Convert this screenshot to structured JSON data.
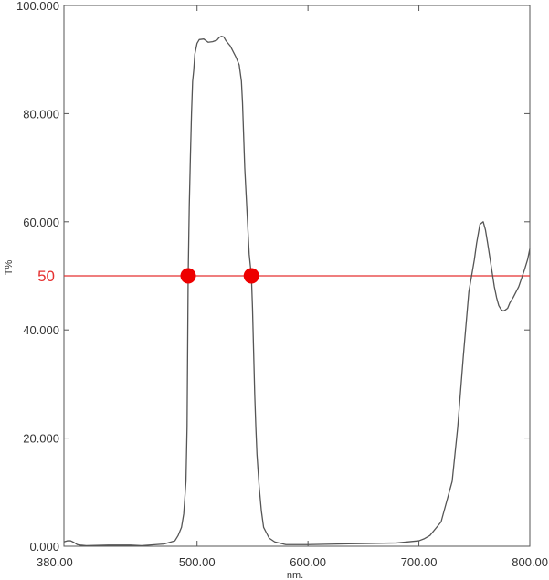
{
  "chart_data": {
    "type": "line",
    "xlabel": "nm.",
    "ylabel": "T%",
    "xlim": [
      380,
      800
    ],
    "ylim": [
      0,
      100
    ],
    "xticks": [
      "380.00",
      "500.00",
      "600.00",
      "700.00",
      "800.00"
    ],
    "yticks": [
      "0.000",
      "20.000",
      "40.000",
      "60.000",
      "80.000",
      "100.000"
    ],
    "grid": false,
    "colors": {
      "line": "#555555",
      "reference": "#e53030",
      "marker": "#ee0000",
      "frame": "#555555"
    },
    "reference_line": {
      "y": 50,
      "label": "50"
    },
    "markers": [
      {
        "x": 492,
        "y": 50
      },
      {
        "x": 549,
        "y": 50
      }
    ],
    "series": [
      {
        "x": [
          380,
          383,
          386,
          389,
          392,
          395,
          400,
          420,
          440,
          450,
          470,
          480,
          483,
          486,
          488,
          490,
          491,
          492,
          493,
          494,
          495,
          496,
          497,
          498,
          500,
          502,
          506,
          510,
          514,
          518,
          520,
          522,
          524,
          526,
          530,
          535,
          538,
          540,
          541,
          542,
          543,
          544,
          545,
          546,
          547,
          548,
          549,
          550,
          551,
          552,
          553,
          554,
          556,
          558,
          560,
          565,
          570,
          580,
          600,
          650,
          680,
          700,
          705,
          710,
          720,
          730,
          735,
          740,
          745,
          750,
          752,
          755,
          758,
          760,
          762,
          765,
          768,
          770,
          772,
          774,
          776,
          778,
          780,
          782,
          785,
          790,
          795,
          798,
          800
        ],
        "y": [
          0.8,
          1.0,
          1.0,
          0.7,
          0.3,
          0.2,
          0.1,
          0.2,
          0.2,
          0.1,
          0.4,
          1.0,
          2.0,
          3.5,
          6.0,
          12.0,
          22.0,
          50.0,
          63.0,
          72.0,
          80.0,
          86.0,
          88.0,
          91.0,
          93.0,
          93.7,
          93.8,
          93.2,
          93.3,
          93.6,
          94.1,
          94.3,
          94.2,
          93.5,
          92.5,
          90.5,
          89.0,
          86.0,
          82.0,
          76.0,
          70.0,
          66.0,
          62.0,
          58.0,
          54.0,
          52.0,
          50.0,
          44.0,
          36.0,
          28.0,
          22.0,
          17.0,
          11.0,
          6.5,
          3.5,
          1.5,
          0.8,
          0.3,
          0.3,
          0.5,
          0.6,
          1.0,
          1.4,
          2.0,
          4.5,
          12.0,
          22.0,
          35.0,
          47.0,
          53.0,
          56.0,
          59.5,
          60.0,
          58.5,
          56.0,
          52.0,
          48.0,
          46.0,
          44.5,
          43.8,
          43.5,
          43.7,
          44.0,
          45.0,
          46.0,
          48.0,
          51.0,
          53.0,
          55.0
        ]
      }
    ]
  }
}
